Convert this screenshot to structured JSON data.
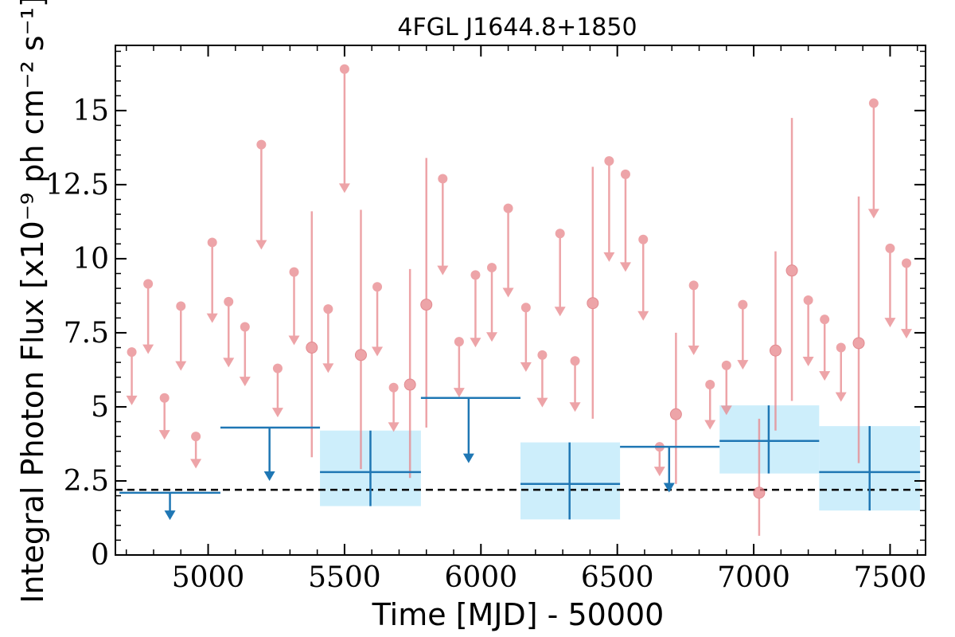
{
  "chart_data": {
    "type": "scatter",
    "title": "4FGL J1644.8+1850",
    "xlabel": "Time [MJD] - 50000",
    "ylabel": "Integral Photon Flux [x10⁻⁹ ph cm⁻² s⁻¹]",
    "xlim": [
      4660,
      7630
    ],
    "ylim": [
      0,
      17.2
    ],
    "x_ticks": [
      5000,
      5500,
      6000,
      6500,
      7000,
      7500
    ],
    "y_ticks": [
      0,
      2.5,
      5,
      7.5,
      10,
      12.5,
      15
    ],
    "x_tick_labels": [
      "5000",
      "5500",
      "6000",
      "6500",
      "7000",
      "7500"
    ],
    "y_tick_labels": [
      "0",
      "2.5",
      "5",
      "7.5",
      "10",
      "12.5",
      "15"
    ],
    "reference_line": {
      "y": 2.2,
      "style": "dashed",
      "color": "#000000"
    },
    "colors": {
      "monthly": "#e8868b",
      "yearly": "#1f77b4",
      "yearly_band": "#cdeefb"
    },
    "series": [
      {
        "kind": "upper_limits",
        "color": "#e8868b",
        "points": [
          {
            "x": 4720,
            "y": 6.85
          },
          {
            "x": 4780,
            "y": 9.15
          },
          {
            "x": 4840,
            "y": 5.3
          },
          {
            "x": 4900,
            "y": 8.4
          },
          {
            "x": 4955,
            "y": 4.0
          },
          {
            "x": 5015,
            "y": 10.55
          },
          {
            "x": 5075,
            "y": 8.55
          },
          {
            "x": 5135,
            "y": 7.7
          },
          {
            "x": 5195,
            "y": 13.85
          },
          {
            "x": 5255,
            "y": 6.3
          },
          {
            "x": 5315,
            "y": 9.55
          },
          {
            "x": 5440,
            "y": 8.3
          },
          {
            "x": 5500,
            "y": 16.4
          },
          {
            "x": 5620,
            "y": 9.05
          },
          {
            "x": 5680,
            "y": 5.65
          },
          {
            "x": 5860,
            "y": 12.7
          },
          {
            "x": 5920,
            "y": 7.2
          },
          {
            "x": 5980,
            "y": 9.45
          },
          {
            "x": 6040,
            "y": 9.7
          },
          {
            "x": 6100,
            "y": 11.7
          },
          {
            "x": 6165,
            "y": 8.35
          },
          {
            "x": 6225,
            "y": 6.75
          },
          {
            "x": 6290,
            "y": 10.85
          },
          {
            "x": 6345,
            "y": 6.55
          },
          {
            "x": 6470,
            "y": 13.3
          },
          {
            "x": 6530,
            "y": 12.85
          },
          {
            "x": 6595,
            "y": 10.65
          },
          {
            "x": 6655,
            "y": 3.65
          },
          {
            "x": 6780,
            "y": 9.1
          },
          {
            "x": 6840,
            "y": 5.75
          },
          {
            "x": 6900,
            "y": 6.4
          },
          {
            "x": 6960,
            "y": 8.45
          },
          {
            "x": 7200,
            "y": 8.6
          },
          {
            "x": 7260,
            "y": 7.95
          },
          {
            "x": 7320,
            "y": 7.0
          },
          {
            "x": 7440,
            "y": 15.25
          },
          {
            "x": 7500,
            "y": 10.35
          },
          {
            "x": 7560,
            "y": 9.85
          }
        ]
      },
      {
        "kind": "detections",
        "color": "#e8868b",
        "points": [
          {
            "x": 5380,
            "y": 7.0,
            "low": 3.3,
            "high": 11.6
          },
          {
            "x": 5560,
            "y": 6.75,
            "low": 2.9,
            "high": 11.65
          },
          {
            "x": 5740,
            "y": 5.75,
            "low": 2.6,
            "high": 9.65
          },
          {
            "x": 5800,
            "y": 8.45,
            "low": 4.3,
            "high": 13.4
          },
          {
            "x": 6410,
            "y": 8.5,
            "low": 4.6,
            "high": 13.1
          },
          {
            "x": 6715,
            "y": 4.75,
            "low": 2.4,
            "high": 7.5
          },
          {
            "x": 7020,
            "y": 2.1,
            "low": 0.65,
            "high": 4.6
          },
          {
            "x": 7080,
            "y": 6.9,
            "low": 4.2,
            "high": 10.25
          },
          {
            "x": 7140,
            "y": 9.6,
            "low": 5.2,
            "high": 14.75
          },
          {
            "x": 7385,
            "y": 7.15,
            "low": 3.1,
            "high": 12.1
          }
        ]
      },
      {
        "kind": "yearly_upper_limits",
        "color": "#1f77b4",
        "points": [
          {
            "x0": 4675,
            "x1": 5045,
            "y": 2.1,
            "xc": 4860
          },
          {
            "x0": 5045,
            "x1": 5410,
            "y": 4.3,
            "xc": 5225
          },
          {
            "x0": 5780,
            "x1": 6145,
            "y": 5.3,
            "xc": 5955
          },
          {
            "x0": 6510,
            "x1": 6875,
            "y": 3.65,
            "xc": 6690
          }
        ]
      },
      {
        "kind": "yearly_detections",
        "color": "#1f77b4",
        "points": [
          {
            "x0": 5410,
            "x1": 5780,
            "y": 2.8,
            "ylo": 1.65,
            "yhi": 4.2,
            "xc": 5595
          },
          {
            "x0": 6145,
            "x1": 6510,
            "y": 2.4,
            "ylo": 1.2,
            "yhi": 3.8,
            "xc": 6325
          },
          {
            "x0": 6875,
            "x1": 7240,
            "y": 3.85,
            "ylo": 2.75,
            "yhi": 5.05,
            "xc": 7055
          },
          {
            "x0": 7240,
            "x1": 7610,
            "y": 2.8,
            "ylo": 1.5,
            "yhi": 4.35,
            "xc": 7425
          }
        ]
      }
    ]
  }
}
